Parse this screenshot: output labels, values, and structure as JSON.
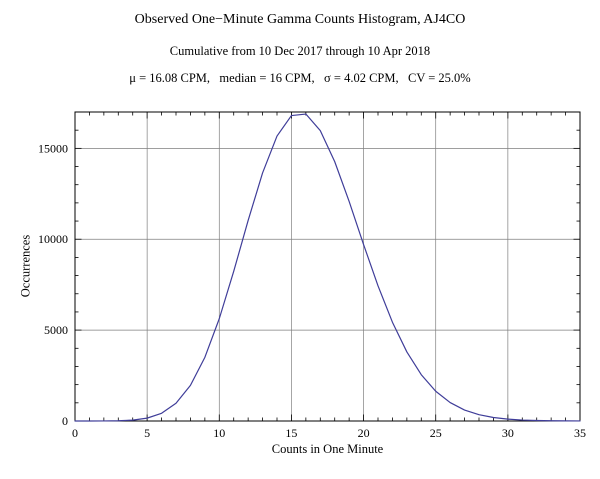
{
  "chart_data": {
    "type": "line",
    "title": "Observed One−Minute Gamma Counts Histogram, AJ4CO",
    "subtitle": "Cumulative from 10 Dec 2017 through 10 Apr 2018",
    "stats_line": "μ = 16.08 CPM,   median = 16 CPM,   σ = 4.02 CPM,   CV = 25.0%",
    "xlabel": "Counts in One Minute",
    "ylabel": "Occurrences",
    "x": [
      0,
      1,
      2,
      3,
      4,
      5,
      6,
      7,
      8,
      9,
      10,
      11,
      12,
      13,
      14,
      15,
      16,
      17,
      18,
      19,
      20,
      21,
      22,
      23,
      24,
      25,
      26,
      27,
      28,
      29,
      30,
      31,
      32,
      33,
      34,
      35
    ],
    "values": [
      0,
      0,
      2,
      13,
      49,
      158,
      425,
      975,
      1960,
      3502,
      5632,
      8233,
      11033,
      13648,
      15676,
      16805,
      16888,
      15975,
      14270,
      12077,
      9710,
      7436,
      5435,
      3800,
      2545,
      1637,
      1013,
      603,
      346,
      192,
      103,
      53,
      27,
      13,
      6,
      3
    ],
    "xlim": [
      0,
      35
    ],
    "ylim": [
      0,
      17000
    ],
    "x_ticks": [
      0,
      5,
      10,
      15,
      20,
      25,
      30,
      35
    ],
    "y_ticks": [
      0,
      5000,
      10000,
      15000
    ],
    "x_minor_step": 1,
    "y_minor_step": 1000,
    "grid": true,
    "legend": "none",
    "mean_cpm": 16.08,
    "median_cpm": 16,
    "sigma_cpm": 4.02,
    "cv_percent": 25.0,
    "line_color": "#3f3d99",
    "grid_color": "#7f7f7f",
    "frame_color": "#000000",
    "tick_color": "#000000"
  }
}
